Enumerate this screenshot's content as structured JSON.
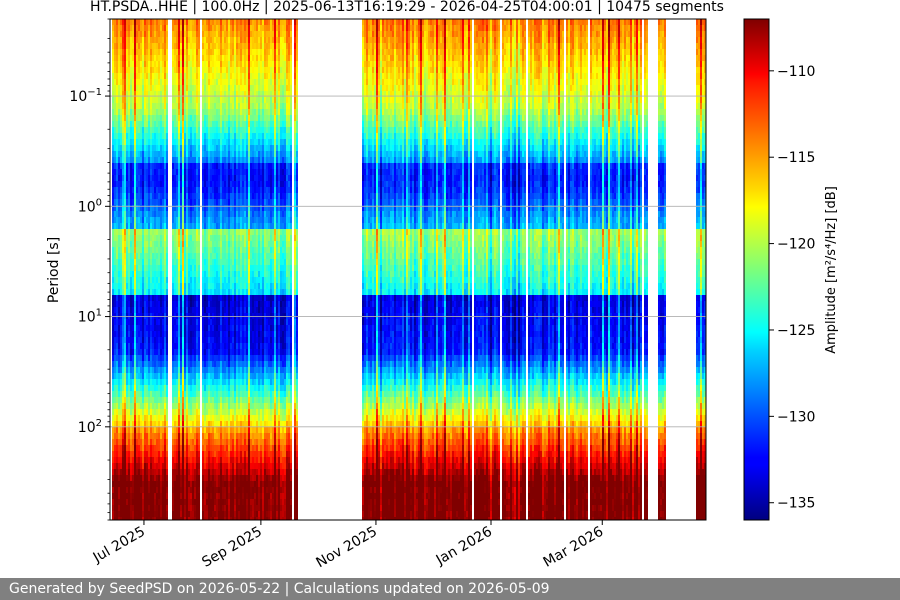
{
  "chart_data": {
    "type": "heatmap",
    "title": "HT.PSDA..HHE | 100.0Hz | 2025-06-13T16:19:29 - 2026-04-25T04:00:01 | 10475 segments",
    "ylabel": "Period [s]",
    "xlabel": "",
    "colorbar_label": "Amplitude [m²/s⁴/Hz] [dB]",
    "y_scale": "log",
    "y_inverted": true,
    "ylim": [
      0.02,
      700
    ],
    "y_ticks": [
      {
        "value": 0.1,
        "base": "10",
        "exp": "−1"
      },
      {
        "value": 1,
        "base": "10",
        "exp": "0"
      },
      {
        "value": 10,
        "base": "10",
        "exp": "1"
      },
      {
        "value": 100,
        "base": "10",
        "exp": "2"
      }
    ],
    "xlim": [
      "2025-06-13",
      "2026-04-25"
    ],
    "x_ticks": [
      {
        "date": "2025-07-01",
        "label": "Jul 2025"
      },
      {
        "date": "2025-09-01",
        "label": "Sep 2025"
      },
      {
        "date": "2025-11-01",
        "label": "Nov 2025"
      },
      {
        "date": "2026-01-01",
        "label": "Jan 2026"
      },
      {
        "date": "2026-03-01",
        "label": "Mar 2026"
      }
    ],
    "grid": "horizontal",
    "colormap": "jet",
    "clim": [
      -136,
      -107
    ],
    "colorbar_ticks": [
      -110,
      -115,
      -120,
      -125,
      -130,
      -135
    ],
    "data_gaps": [
      [
        "2025-09-20",
        "2025-10-24"
      ],
      [
        "2026-03-25",
        "2026-03-29"
      ],
      [
        "2026-04-03",
        "2026-04-19"
      ]
    ]
  },
  "footer": {
    "text": "Generated by SeedPSD on 2026-05-22 | Calculations updated on 2026-05-09"
  }
}
